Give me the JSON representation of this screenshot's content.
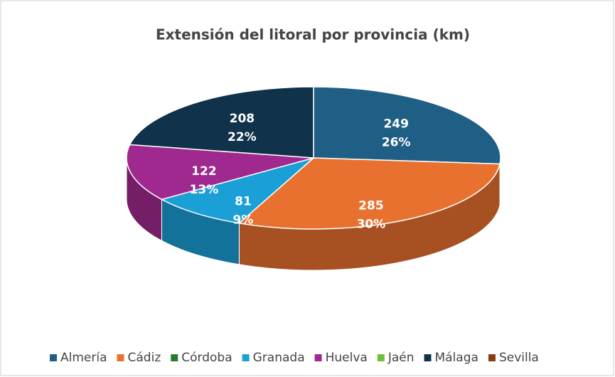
{
  "chart_data": {
    "type": "pie3d",
    "title": "Extensión del litoral por provincia (km)",
    "categories": [
      "Almería",
      "Cádiz",
      "Córdoba",
      "Granada",
      "Huelva",
      "Jaén",
      "Málaga",
      "Sevilla"
    ],
    "values": [
      249,
      285,
      0,
      81,
      122,
      0,
      208,
      0
    ],
    "percent_labels": [
      "26%",
      "30%",
      null,
      "9%",
      "13%",
      null,
      "22%",
      null
    ],
    "colors": [
      "#1f5f86",
      "#e8712f",
      "#2a7a2a",
      "#1a9fd6",
      "#a0298f",
      "#6fbf3a",
      "#10324a",
      "#8b3a14"
    ],
    "legend": "bottom"
  }
}
